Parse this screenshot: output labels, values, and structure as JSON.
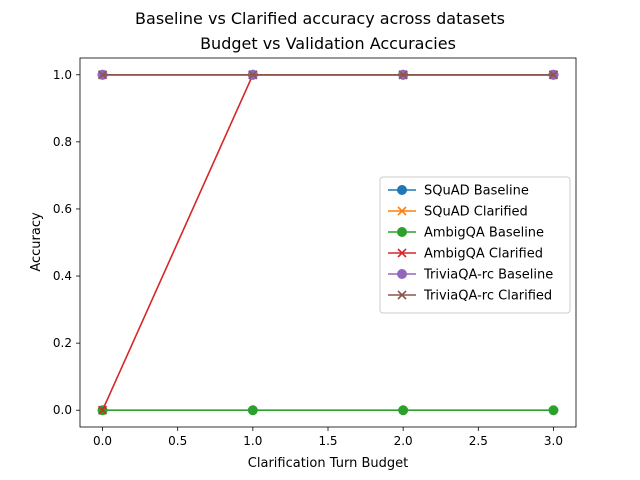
{
  "chart_data": {
    "type": "line",
    "suptitle": "Baseline vs Clarified accuracy across datasets",
    "title": "Budget vs Validation Accuracies",
    "xlabel": "Clarification Turn Budget",
    "ylabel": "Accuracy",
    "xlim": [
      -0.15,
      3.15
    ],
    "ylim": [
      -0.05,
      1.05
    ],
    "xticks": [
      0,
      0.5,
      1,
      1.5,
      2,
      2.5,
      3
    ],
    "xtick_labels": [
      "0.0",
      "0.5",
      "1.0",
      "1.5",
      "2.0",
      "2.5",
      "3.0"
    ],
    "yticks": [
      0,
      0.2,
      0.4,
      0.6,
      0.8,
      1.0
    ],
    "ytick_labels": [
      "0.0",
      "0.2",
      "0.4",
      "0.6",
      "0.8",
      "1.0"
    ],
    "grid": false,
    "legend_position": "center-right",
    "x": [
      0,
      1,
      2,
      3
    ],
    "series": [
      {
        "name": "SQuAD Baseline",
        "values": [
          1,
          1,
          1,
          1
        ],
        "color": "#1f77b4",
        "marker": "circle"
      },
      {
        "name": "SQuAD Clarified",
        "values": [
          1,
          1,
          1,
          1
        ],
        "color": "#ff7f0e",
        "marker": "x"
      },
      {
        "name": "AmbigQA Baseline",
        "values": [
          0,
          0,
          0,
          0
        ],
        "color": "#2ca02c",
        "marker": "circle"
      },
      {
        "name": "AmbigQA Clarified",
        "values": [
          0,
          1,
          1,
          1
        ],
        "color": "#d62728",
        "marker": "x"
      },
      {
        "name": "TriviaQA-rc Baseline",
        "values": [
          1,
          1,
          1,
          1
        ],
        "color": "#9467bd",
        "marker": "circle"
      },
      {
        "name": "TriviaQA-rc Clarified",
        "values": [
          1,
          1,
          1,
          1
        ],
        "color": "#8c564b",
        "marker": "x"
      }
    ]
  }
}
